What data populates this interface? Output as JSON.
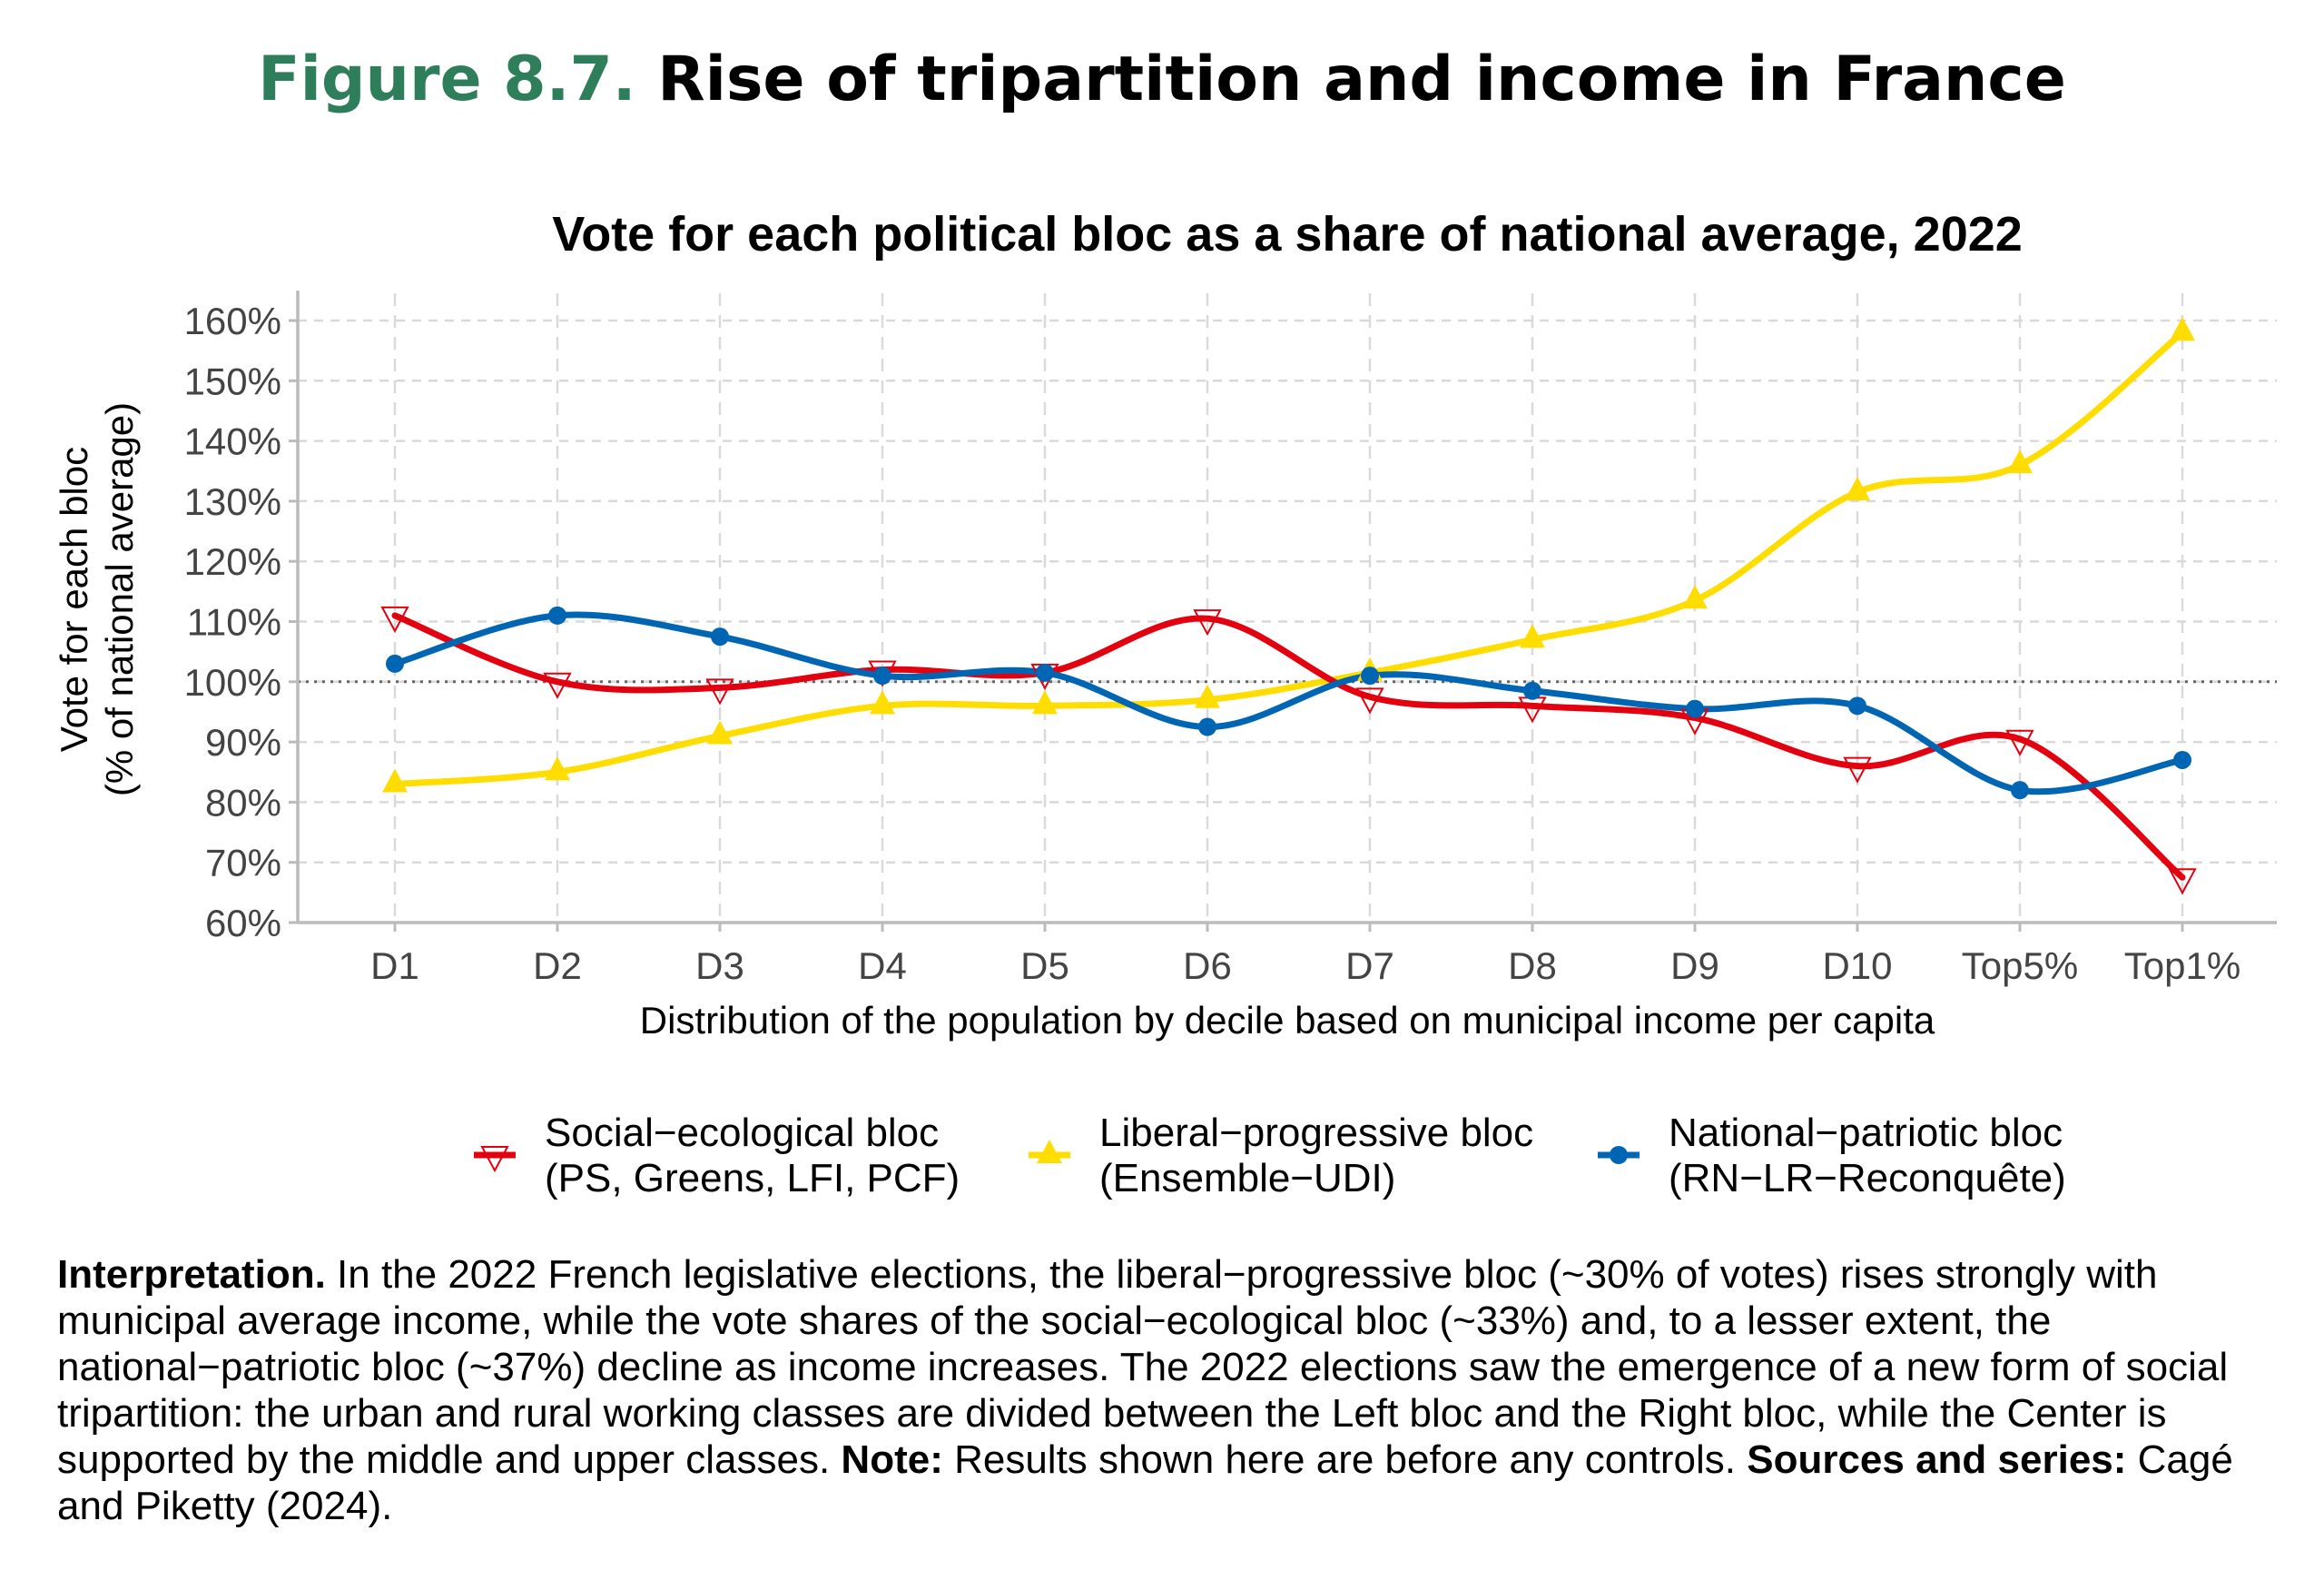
{
  "figure": {
    "number": "Figure 8.7.",
    "title": "Rise of tripartition and income in France"
  },
  "chart_data": {
    "type": "line",
    "title": "Vote for each political bloc as a share of national average, 2022",
    "xlabel": "Distribution of the population by decile based on municipal income per capita",
    "ylabel_line1": "Vote for each bloc",
    "ylabel_line2": "(% of national average)",
    "categories": [
      "D1",
      "D2",
      "D3",
      "D4",
      "D5",
      "D6",
      "D7",
      "D8",
      "D9",
      "D10",
      "Top5%",
      "Top1%"
    ],
    "ylim": [
      60,
      160
    ],
    "yticks": [
      "60%",
      "70%",
      "80%",
      "90%",
      "100%",
      "110%",
      "120%",
      "130%",
      "140%",
      "150%",
      "160%"
    ],
    "reference_line": 100,
    "grid": true,
    "legend_position": "bottom",
    "series": [
      {
        "name_line1": "Social−ecological bloc",
        "name_line2": "(PS, Greens, LFI, PCF)",
        "color": "#e3000f",
        "marker": "open-down-triangle",
        "values": [
          111,
          100,
          99,
          102,
          101.5,
          110.5,
          97.5,
          96,
          94,
          86,
          90.5,
          67.5
        ]
      },
      {
        "name_line1": "Liberal−progressive bloc",
        "name_line2": "(Ensemble−UDI)",
        "color": "#ffdd00",
        "marker": "filled-up-triangle",
        "values": [
          83,
          85,
          91,
          96,
          96,
          97,
          101.5,
          107,
          113.5,
          131.5,
          136,
          158
        ]
      },
      {
        "name_line1": "National−patriotic bloc",
        "name_line2": "(RN−LR−Reconquête)",
        "color": "#0066b3",
        "marker": "filled-circle",
        "values": [
          103,
          111,
          107.5,
          101,
          101.5,
          92.5,
          101,
          98.5,
          95.5,
          96,
          82,
          87
        ]
      }
    ]
  },
  "notes": {
    "interp_label": "Interpretation.",
    "interp_text": " In the 2022 French legislative elections, the liberal−progressive bloc (~30% of votes) rises strongly with municipal average income, while the vote shares of the social−ecological bloc (~33%) and, to a lesser extent, the national−patriotic bloc (~37%) decline as income increases. The 2022 elections saw the emergence of a new form of social tripartition: the urban and rural working classes are divided between the Left bloc and the Right bloc, while the Center is supported by the middle and upper classes. ",
    "note_label": "Note:",
    "note_text": " Results shown here are before any controls. ",
    "sources_label": "Sources and series:",
    "sources_text": " Cagé and Piketty (2024)."
  }
}
